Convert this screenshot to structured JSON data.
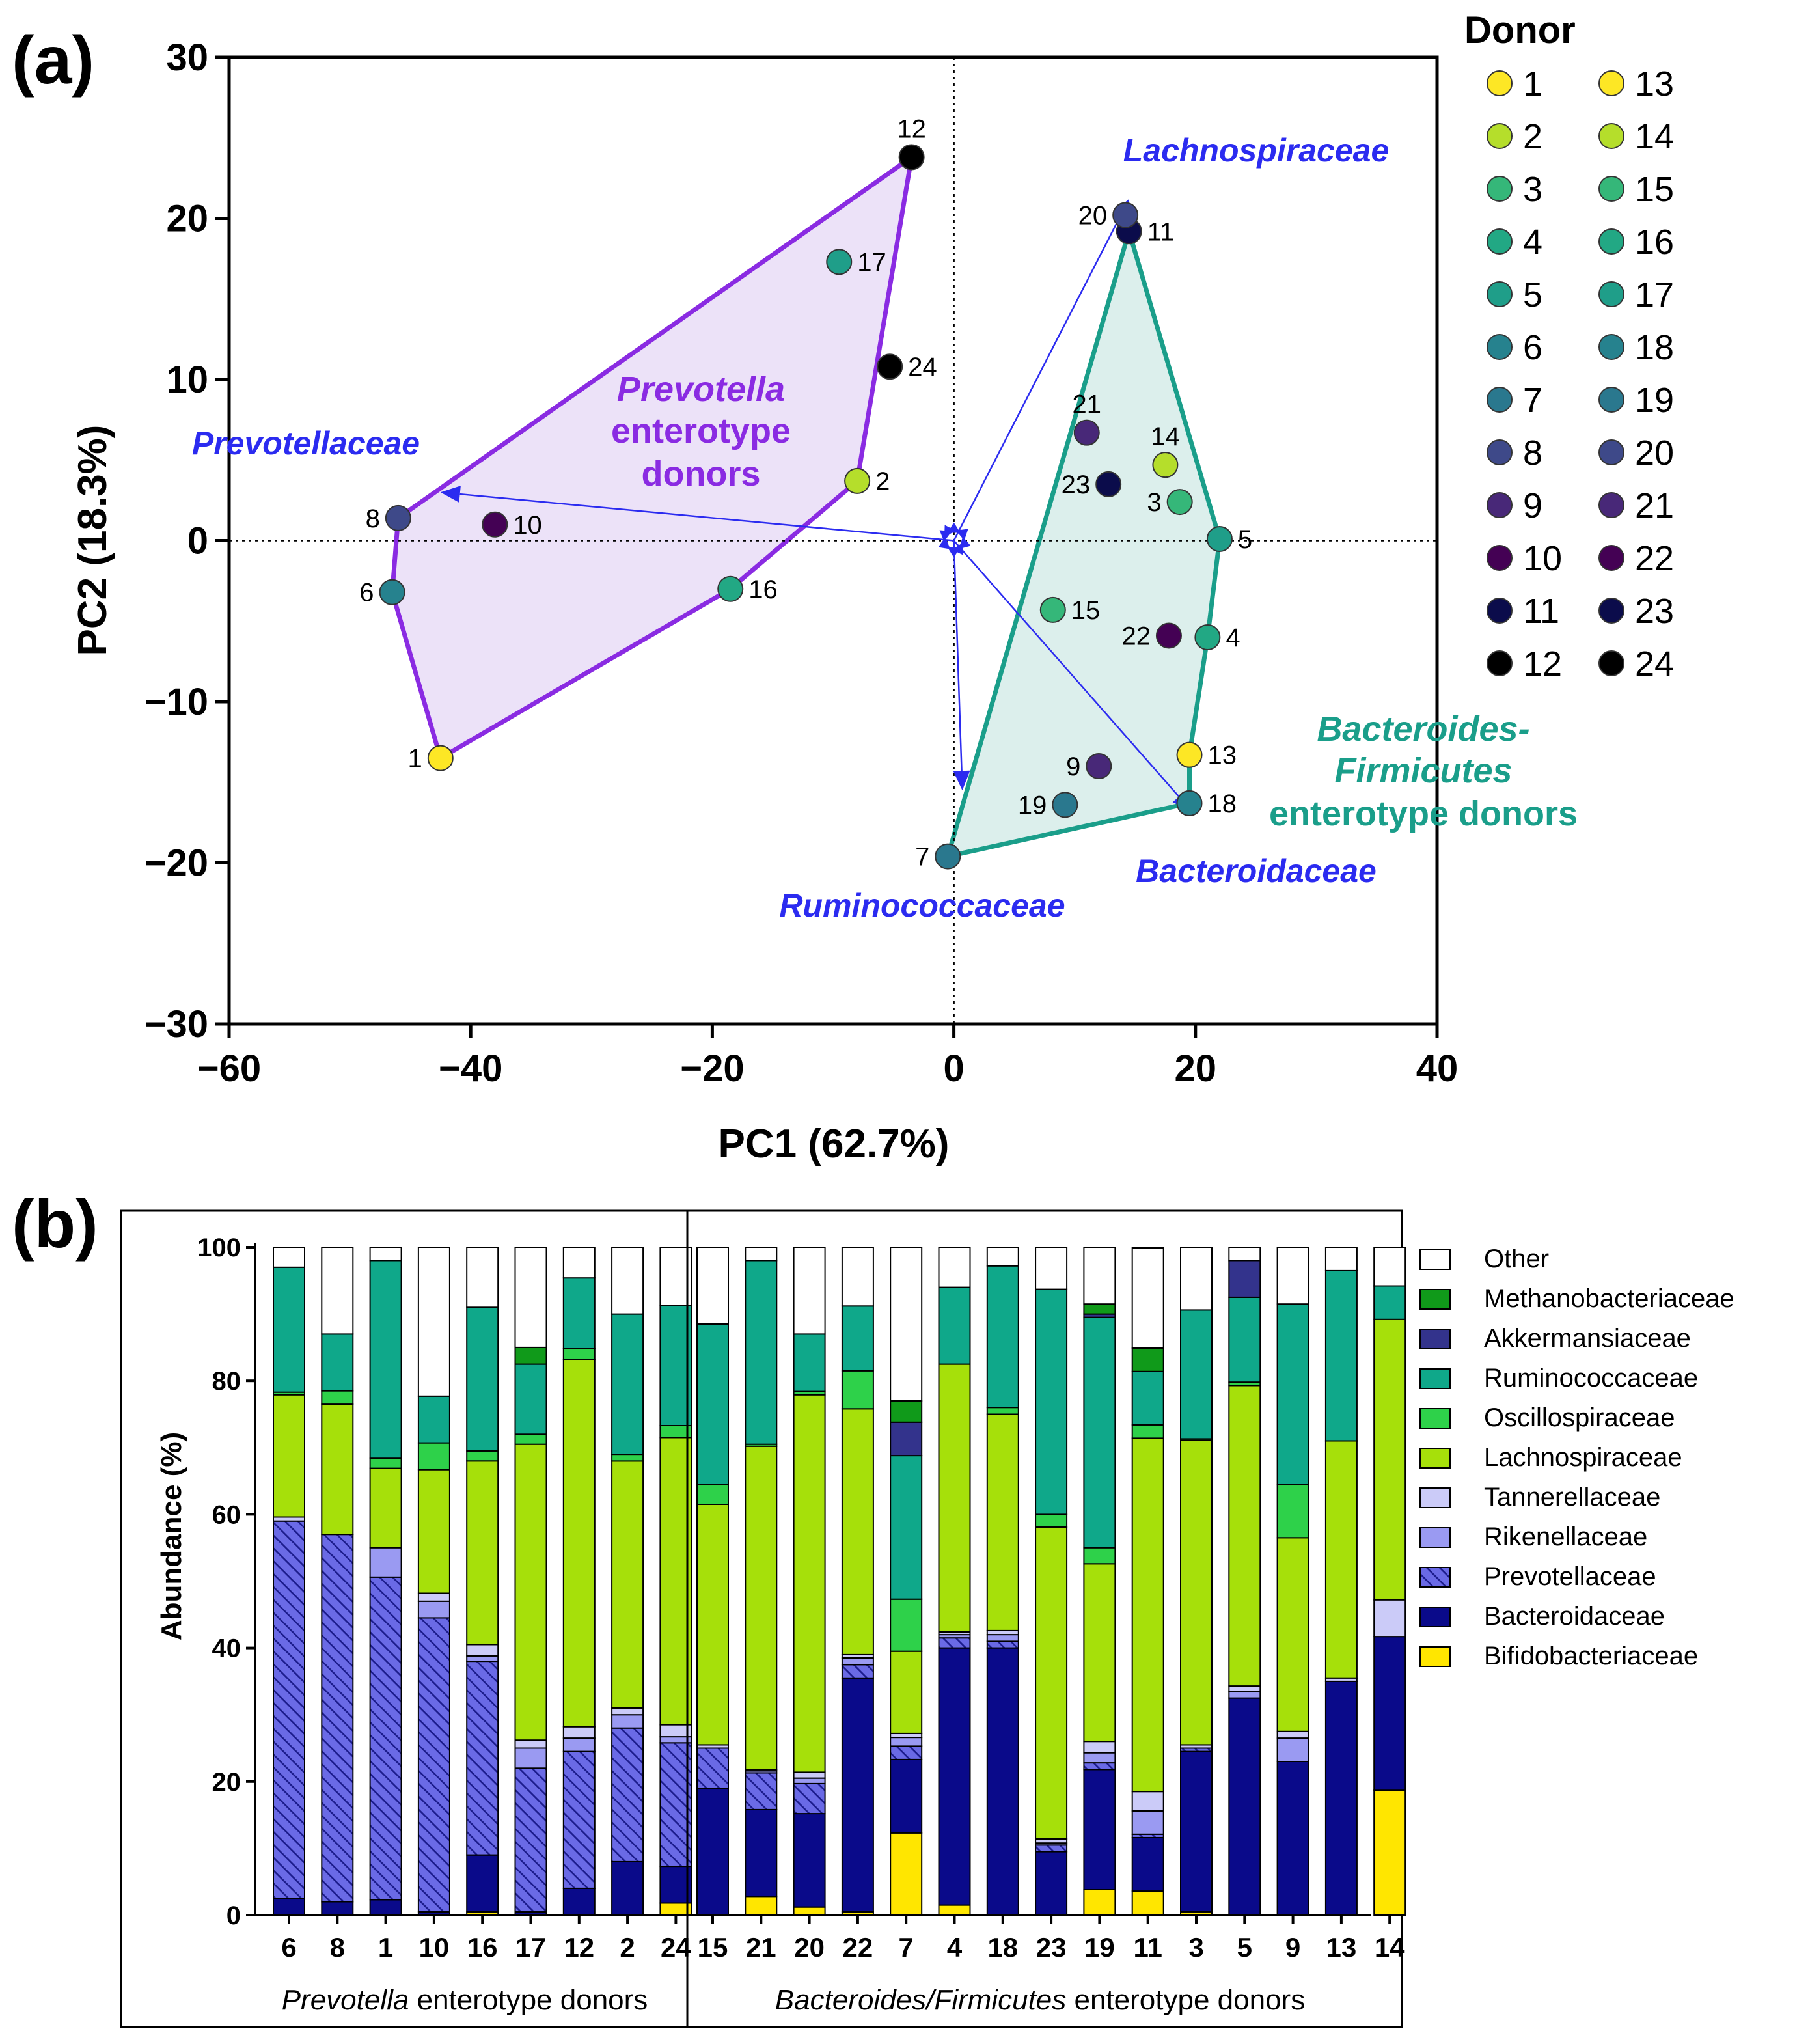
{
  "chart_data": [
    {
      "type": "scatter",
      "panel_label": "(a)",
      "xlabel": "PC1 (62.7%)",
      "ylabel": "PC2 (18.3%)",
      "xlim": [
        -60,
        40
      ],
      "ylim": [
        -30,
        30
      ],
      "xticks": [
        -60,
        -40,
        -20,
        0,
        20,
        40
      ],
      "xtick_labels": [
        "−60",
        "−40",
        "−20",
        "0",
        "20",
        "40"
      ],
      "yticks": [
        30,
        20,
        10,
        0,
        -10,
        -20,
        -30
      ],
      "ytick_labels": [
        "30",
        "20",
        "10",
        "0",
        "−10",
        "−20",
        "−30"
      ],
      "legend_title": "Donor",
      "donor_colors": {
        "1": "#fde725",
        "2": "#b5de2b",
        "3": "#35b779",
        "4": "#22a884",
        "5": "#1f9e89",
        "6": "#26828e",
        "7": "#2a788e",
        "8": "#3e4989",
        "9": "#482878",
        "10": "#440154",
        "11": "#0b0c4b",
        "12": "#000000",
        "13": "#fde725",
        "14": "#b5de2b",
        "15": "#35b779",
        "16": "#22a884",
        "17": "#1f9e89",
        "18": "#26828e",
        "19": "#2a788e",
        "20": "#3e4989",
        "21": "#482878",
        "22": "#440154",
        "23": "#0b0c4b",
        "24": "#000000"
      },
      "legend_col1": [
        "1",
        "2",
        "3",
        "4",
        "5",
        "6",
        "7",
        "8",
        "9",
        "10",
        "11",
        "12"
      ],
      "legend_col2": [
        "13",
        "14",
        "15",
        "16",
        "17",
        "18",
        "19",
        "20",
        "21",
        "22",
        "23",
        "24"
      ],
      "points": [
        {
          "id": "1",
          "x": -42.5,
          "y": -13.5
        },
        {
          "id": "2",
          "x": -8,
          "y": 3.7
        },
        {
          "id": "3",
          "x": 18.7,
          "y": 2.4
        },
        {
          "id": "4",
          "x": 21,
          "y": -6
        },
        {
          "id": "5",
          "x": 22,
          "y": 0.1
        },
        {
          "id": "6",
          "x": -46.5,
          "y": -3.2
        },
        {
          "id": "7",
          "x": -0.5,
          "y": -19.6
        },
        {
          "id": "8",
          "x": -46,
          "y": 1.4
        },
        {
          "id": "9",
          "x": 12,
          "y": -14
        },
        {
          "id": "10",
          "x": -38,
          "y": 1
        },
        {
          "id": "11",
          "x": 14.5,
          "y": 19.2
        },
        {
          "id": "12",
          "x": -3.5,
          "y": 23.8
        },
        {
          "id": "13",
          "x": 19.5,
          "y": -13.3
        },
        {
          "id": "14",
          "x": 17.5,
          "y": 4.7
        },
        {
          "id": "15",
          "x": 8.2,
          "y": -4.3
        },
        {
          "id": "16",
          "x": -18.5,
          "y": -3
        },
        {
          "id": "17",
          "x": -9.5,
          "y": 17.3
        },
        {
          "id": "18",
          "x": 19.5,
          "y": -16.3
        },
        {
          "id": "19",
          "x": 9.2,
          "y": -16.4
        },
        {
          "id": "20",
          "x": 14.2,
          "y": 20.2
        },
        {
          "id": "21",
          "x": 11,
          "y": 6.7
        },
        {
          "id": "22",
          "x": 17.8,
          "y": -5.9
        },
        {
          "id": "23",
          "x": 12.8,
          "y": 3.5
        },
        {
          "id": "24",
          "x": -5.3,
          "y": 10.8
        }
      ],
      "point_label_side": {
        "1": "left",
        "2": "right",
        "3": "left",
        "4": "right",
        "5": "right",
        "6": "left",
        "7": "left",
        "8": "left",
        "9": "left",
        "10": "right",
        "11": "right",
        "12": "above",
        "13": "right",
        "14": "above",
        "15": "right",
        "16": "right",
        "17": "right",
        "18": "right",
        "19": "left",
        "20": "left",
        "21": "above",
        "22": "left",
        "23": "left",
        "24": "right"
      },
      "groups": [
        {
          "name": "Prevotella enterotype donors",
          "label_lines": [
            "Prevotella",
            "enterotype",
            "donors"
          ],
          "label_italic_line": 0,
          "color": "#8a2be2",
          "fill": "#ece2f8",
          "hull": [
            "12",
            "2",
            "16",
            "1",
            "6",
            "8"
          ]
        },
        {
          "name": "Bacteroides-Firmicutes enterotype donors",
          "label_lines": [
            "Bacteroides-",
            "Firmicutes",
            "enterotype donors"
          ],
          "label_italic_lines": [
            0,
            1
          ],
          "color": "#1a9e8a",
          "fill": "#dcefec",
          "hull": [
            "11",
            "5",
            "4",
            "13",
            "18",
            "7"
          ]
        }
      ],
      "loading_color": "#2b2bf0",
      "loadings": [
        {
          "name": "Lachnospiraceae",
          "x": 14.5,
          "y": 21.2
        },
        {
          "name": "Prevotellaceae",
          "x": -42.5,
          "y": 3
        },
        {
          "name": "Bacteroidaceae",
          "x": 19.7,
          "y": -16.8
        },
        {
          "name": "Ruminococcaceae",
          "x": 0.7,
          "y": -15.5
        }
      ],
      "loading_labels": [
        "Lachnospiraceae",
        "Prevotellaceae",
        "Bacteroidaceae",
        "Ruminococcaceae"
      ]
    },
    {
      "type": "bar",
      "stacked": true,
      "panel_label": "(b)",
      "ylabel": "Abundance (%)",
      "ylim": [
        0,
        100
      ],
      "yticks": [
        0,
        20,
        40,
        60,
        80,
        100
      ],
      "categories": [
        "6",
        "8",
        "1",
        "10",
        "16",
        "17",
        "12",
        "2",
        "24",
        "15",
        "21",
        "20",
        "22",
        "7",
        "4",
        "18",
        "23",
        "19",
        "11",
        "3",
        "5",
        "9",
        "13",
        "14"
      ],
      "groups": [
        {
          "label_italic": "Prevotella",
          "label_rest": " enterotype donors",
          "count": 9
        },
        {
          "label_italic": "Bacteroides/Firmicutes",
          "label_rest": " enterotype donors",
          "count": 15
        }
      ],
      "series": [
        {
          "name": "Bifidobacteriaceae",
          "color": "#ffe600",
          "hatch": false,
          "values": [
            0,
            0,
            0,
            0,
            0.5,
            0,
            0,
            0,
            1.8,
            0,
            2.8,
            1.2,
            0.5,
            12.3,
            1.5,
            0,
            0,
            3.8,
            3.6,
            0.5,
            0,
            0,
            0,
            18.7
          ]
        },
        {
          "name": "Bacteroidaceae",
          "color": "#0a0a8a",
          "hatch": false,
          "values": [
            2.5,
            2,
            2.3,
            0.5,
            8.5,
            0.5,
            4,
            8,
            5.5,
            19,
            13,
            14,
            35,
            11,
            38.5,
            40,
            9.5,
            18,
            8,
            24,
            32.5,
            23,
            35,
            23
          ]
        },
        {
          "name": "Prevotellaceae",
          "color": "#6a6ae6",
          "hatch": true,
          "values": [
            56.5,
            55,
            48.3,
            44,
            29,
            21.5,
            20.5,
            20,
            18.5,
            6,
            5.5,
            4.5,
            2,
            2,
            1.5,
            1,
            1,
            1,
            0.5,
            0.5,
            0,
            0,
            0,
            0
          ]
        },
        {
          "name": "Rikenellaceae",
          "color": "#9a9af2",
          "hatch": false,
          "values": [
            0,
            0,
            4.4,
            2.5,
            0.8,
            3,
            2,
            2,
            0.9,
            0,
            0.3,
            0.8,
            1,
            1.3,
            0.5,
            1,
            0.3,
            1.5,
            3.5,
            0,
            1,
            3.5,
            0,
            0
          ]
        },
        {
          "name": "Tannerellaceae",
          "color": "#cbcbf8",
          "hatch": false,
          "values": [
            0.6,
            0,
            0,
            1.2,
            1.7,
            1.2,
            1.7,
            1,
            1.8,
            0.5,
            0.2,
            0.9,
            0.5,
            0.6,
            0.4,
            0.6,
            0.6,
            1.7,
            2.9,
            0.5,
            0.8,
            1,
            0.5,
            5.5
          ]
        },
        {
          "name": "Lachnospiraceae",
          "color": "#a6e00a",
          "hatch": false,
          "values": [
            18.3,
            19.5,
            11.9,
            18.5,
            27.5,
            44.3,
            55,
            37,
            43,
            36,
            48.4,
            56.5,
            36.8,
            12.3,
            40.1,
            32.4,
            46.7,
            26.6,
            52.9,
            45.6,
            45,
            29,
            35.5,
            42
          ]
        },
        {
          "name": "Oscillospiraceae",
          "color": "#2ed14a",
          "hatch": false,
          "values": [
            0.4,
            2,
            1.5,
            4,
            1.5,
            1.5,
            1.6,
            1,
            1.8,
            3,
            0.3,
            0.5,
            5.7,
            7.8,
            0,
            1,
            1.9,
            2.4,
            2,
            0.2,
            0.5,
            8,
            0,
            0
          ]
        },
        {
          "name": "Ruminococcaceae",
          "color": "#0fa88a",
          "hatch": false,
          "values": [
            18.7,
            8.5,
            29.6,
            7,
            21.5,
            10.5,
            10.6,
            21,
            18,
            24,
            27.5,
            8.6,
            9.7,
            21.5,
            11.5,
            21.2,
            33.7,
            34.5,
            8,
            19.3,
            12.7,
            27,
            25.5,
            5
          ]
        },
        {
          "name": "Akkermansiaceae",
          "color": "#33338c",
          "hatch": false,
          "values": [
            0,
            0,
            0,
            0,
            0,
            0,
            0,
            0,
            0,
            0,
            0,
            0,
            0,
            5,
            0,
            0,
            0,
            0.5,
            0,
            0,
            5.5,
            0,
            0,
            0
          ]
        },
        {
          "name": "Methanobacteriaceae",
          "color": "#109a1a",
          "hatch": false,
          "values": [
            0,
            0,
            0,
            0,
            0,
            2.5,
            0,
            0,
            0,
            0,
            0,
            0,
            0,
            3.2,
            0,
            0,
            0,
            1.5,
            3.5,
            0,
            0,
            0,
            0,
            0
          ]
        },
        {
          "name": "Other",
          "color": "#ffffff",
          "hatch": false,
          "values": [
            3,
            13,
            2,
            22.3,
            9,
            15,
            4.6,
            10,
            8.7,
            11.5,
            2,
            13,
            8.8,
            23,
            6,
            2.8,
            6.3,
            8.5,
            15,
            9.4,
            2,
            8.5,
            3.5,
            5.8
          ]
        }
      ],
      "legend_order": [
        "Other",
        "Methanobacteriaceae",
        "Akkermansiaceae",
        "Ruminococcaceae",
        "Oscillospiraceae",
        "Lachnospiraceae",
        "Tannerellaceae",
        "Rikenellaceae",
        "Prevotellaceae",
        "Bacteroidaceae",
        "Bifidobacteriaceae"
      ]
    }
  ]
}
